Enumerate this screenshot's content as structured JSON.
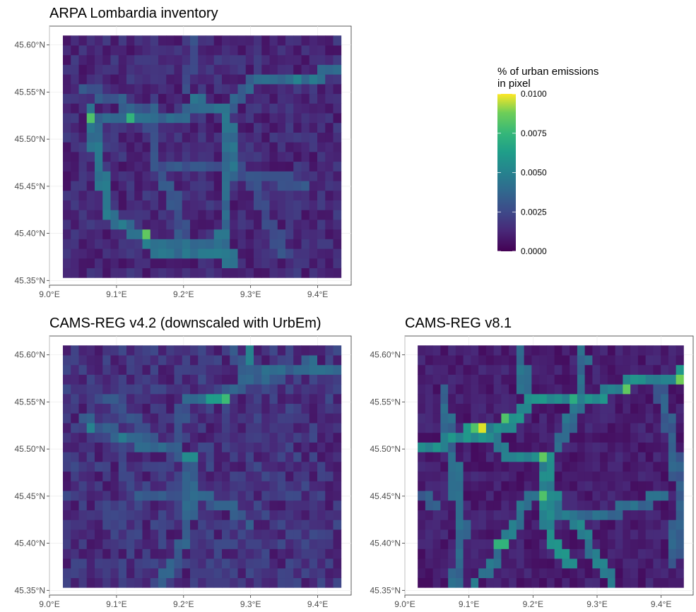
{
  "chart_data": [
    {
      "type": "heatmap",
      "title": "ARPA Lombardia inventory",
      "xlim": [
        9.0,
        9.45
      ],
      "ylim": [
        45.345,
        45.62
      ],
      "x_ticks": [
        "9.0°E",
        "9.1°E",
        "9.2°E",
        "9.3°E",
        "9.4°E"
      ],
      "y_ticks": [
        "45.35°N",
        "45.40°N",
        "45.45°N",
        "45.50°N",
        "45.55°N",
        "45.60°N"
      ],
      "grid_extent": {
        "lon": [
          9.02,
          9.435
        ],
        "lat": [
          45.353,
          45.61
        ]
      },
      "grid_size": [
        35,
        25
      ],
      "base_level": 0.0013,
      "hot_cells": [
        {
          "lon": 9.06,
          "lat": 45.518,
          "value": 0.0072
        },
        {
          "lon": 9.12,
          "lat": 45.518,
          "value": 0.0065
        },
        {
          "lon": 9.143,
          "lat": 45.398,
          "value": 0.0075
        },
        {
          "lon": 9.37,
          "lat": 45.566,
          "value": 0.0045
        },
        {
          "lon": 9.39,
          "lat": 45.566,
          "value": 0.0042
        }
      ],
      "roads": [
        {
          "value": 0.0038,
          "points": [
            [
              9.06,
              45.53
            ],
            [
              9.07,
              45.49
            ],
            [
              9.08,
              45.45
            ],
            [
              9.09,
              45.42
            ],
            [
              9.14,
              45.395
            ],
            [
              9.15,
              45.385
            ],
            [
              9.2,
              45.385
            ],
            [
              9.25,
              45.385
            ],
            [
              9.27,
              45.375
            ]
          ]
        },
        {
          "value": 0.0035,
          "points": [
            [
              9.06,
              45.52
            ],
            [
              9.19,
              45.52
            ],
            [
              9.22,
              45.54
            ],
            [
              9.26,
              45.53
            ],
            [
              9.27,
              45.5
            ],
            [
              9.265,
              45.45
            ],
            [
              9.26,
              45.4
            ],
            [
              9.27,
              45.37
            ]
          ]
        },
        {
          "value": 0.0033,
          "points": [
            [
              9.26,
              45.53
            ],
            [
              9.3,
              45.56
            ],
            [
              9.35,
              45.56
            ],
            [
              9.44,
              45.575
            ]
          ]
        },
        {
          "value": 0.0028,
          "points": [
            [
              9.05,
              45.555
            ],
            [
              9.1,
              45.54
            ],
            [
              9.15,
              45.53
            ]
          ]
        },
        {
          "value": 0.0026,
          "points": [
            [
              9.15,
              45.53
            ],
            [
              9.16,
              45.47
            ],
            [
              9.19,
              45.43
            ],
            [
              9.2,
              45.4
            ]
          ]
        },
        {
          "value": 0.0026,
          "points": [
            [
              9.18,
              45.47
            ],
            [
              9.26,
              45.47
            ],
            [
              9.33,
              45.46
            ],
            [
              9.38,
              45.45
            ]
          ]
        },
        {
          "value": 0.0024,
          "points": [
            [
              9.2,
              45.55
            ],
            [
              9.22,
              45.6
            ]
          ]
        },
        {
          "value": 0.0024,
          "points": [
            [
              9.3,
              45.46
            ],
            [
              9.33,
              45.41
            ],
            [
              9.35,
              45.38
            ]
          ]
        }
      ],
      "colorscale": "viridis",
      "value_range": [
        0.0,
        0.01
      ]
    },
    {
      "type": "heatmap",
      "title": "CAMS-REG v4.2 (downscaled with UrbEm)",
      "xlim": [
        9.0,
        9.45
      ],
      "ylim": [
        45.345,
        45.62
      ],
      "x_ticks": [
        "9.0°E",
        "9.1°E",
        "9.2°E",
        "9.3°E",
        "9.4°E"
      ],
      "y_ticks": [
        "45.35°N",
        "45.40°N",
        "45.45°N",
        "45.50°N",
        "45.55°N",
        "45.60°N"
      ],
      "grid_extent": {
        "lon": [
          9.02,
          9.435
        ],
        "lat": [
          45.353,
          45.61
        ]
      },
      "grid_size": [
        35,
        25
      ],
      "base_level": 0.0016,
      "hot_cells": [
        {
          "lon": 9.265,
          "lat": 45.556,
          "value": 0.0068
        },
        {
          "lon": 9.245,
          "lat": 45.556,
          "value": 0.0055
        },
        {
          "lon": 9.3,
          "lat": 45.6,
          "value": 0.0045
        },
        {
          "lon": 9.21,
          "lat": 45.49,
          "value": 0.0048
        },
        {
          "lon": 9.065,
          "lat": 45.527,
          "value": 0.0045
        },
        {
          "lon": 9.105,
          "lat": 45.508,
          "value": 0.0042
        }
      ],
      "roads": [
        {
          "value": 0.0033,
          "points": [
            [
              9.2,
              45.55
            ],
            [
              9.25,
              45.555
            ],
            [
              9.32,
              45.58
            ],
            [
              9.39,
              45.59
            ],
            [
              9.44,
              45.58
            ]
          ]
        },
        {
          "value": 0.0031,
          "points": [
            [
              9.05,
              45.53
            ],
            [
              9.12,
              45.51
            ],
            [
              9.18,
              45.5
            ],
            [
              9.21,
              45.49
            ],
            [
              9.21,
              45.44
            ],
            [
              9.2,
              45.4
            ],
            [
              9.17,
              45.36
            ]
          ]
        },
        {
          "value": 0.0029,
          "points": [
            [
              9.14,
              45.45
            ],
            [
              9.21,
              45.45
            ],
            [
              9.27,
              45.44
            ],
            [
              9.3,
              45.42
            ]
          ]
        },
        {
          "value": 0.0028,
          "points": [
            [
              9.28,
              45.6
            ],
            [
              9.3,
              45.58
            ],
            [
              9.35,
              45.57
            ]
          ]
        },
        {
          "value": 0.0027,
          "points": [
            [
              9.2,
              45.55
            ],
            [
              9.19,
              45.5
            ]
          ]
        },
        {
          "value": 0.0026,
          "points": [
            [
              9.09,
              45.55
            ],
            [
              9.13,
              45.53
            ],
            [
              9.16,
              45.5
            ]
          ]
        }
      ],
      "colorscale": "viridis",
      "value_range": [
        0.0,
        0.01
      ]
    },
    {
      "type": "heatmap",
      "title": "CAMS-REG v8.1",
      "xlim": [
        9.0,
        9.45
      ],
      "ylim": [
        45.345,
        45.62
      ],
      "x_ticks": [
        "9.0°E",
        "9.1°E",
        "9.2°E",
        "9.3°E",
        "9.4°E"
      ],
      "y_ticks": [
        "45.35°N",
        "45.40°N",
        "45.45°N",
        "45.50°N",
        "45.55°N",
        "45.60°N"
      ],
      "grid_extent": {
        "lon": [
          9.02,
          9.435
        ],
        "lat": [
          45.353,
          45.61
        ]
      },
      "grid_size": [
        35,
        25
      ],
      "base_level": 0.0009,
      "hot_cells": [
        {
          "lon": 9.12,
          "lat": 45.518,
          "value": 0.0095
        },
        {
          "lon": 9.105,
          "lat": 45.518,
          "value": 0.0072
        },
        {
          "lon": 9.16,
          "lat": 45.535,
          "value": 0.0072
        },
        {
          "lon": 9.22,
          "lat": 45.488,
          "value": 0.0075
        },
        {
          "lon": 9.22,
          "lat": 45.45,
          "value": 0.0072
        },
        {
          "lon": 9.345,
          "lat": 45.568,
          "value": 0.0075
        },
        {
          "lon": 9.43,
          "lat": 45.578,
          "value": 0.0078
        },
        {
          "lon": 9.265,
          "lat": 45.556,
          "value": 0.0062
        },
        {
          "lon": 9.15,
          "lat": 45.397,
          "value": 0.0065
        }
      ],
      "roads": [
        {
          "value": 0.0048,
          "points": [
            [
              9.02,
              45.505
            ],
            [
              9.06,
              45.505
            ],
            [
              9.1,
              45.518
            ],
            [
              9.14,
              45.518
            ],
            [
              9.17,
              45.53
            ],
            [
              9.19,
              45.55
            ],
            [
              9.3,
              45.555
            ],
            [
              9.35,
              45.57
            ],
            [
              9.44,
              45.58
            ]
          ]
        },
        {
          "value": 0.0046,
          "points": [
            [
              9.22,
              45.49
            ],
            [
              9.22,
              45.42
            ],
            [
              9.23,
              45.4
            ],
            [
              9.26,
              45.38
            ]
          ]
        },
        {
          "value": 0.0044,
          "points": [
            [
              9.14,
              45.51
            ],
            [
              9.17,
              45.49
            ],
            [
              9.2,
              45.49
            ],
            [
              9.22,
              45.49
            ]
          ]
        },
        {
          "value": 0.0042,
          "points": [
            [
              9.2,
              45.45
            ],
            [
              9.23,
              45.45
            ],
            [
              9.25,
              45.43
            ],
            [
              9.28,
              45.41
            ],
            [
              9.3,
              45.38
            ],
            [
              9.32,
              45.36
            ]
          ]
        },
        {
          "value": 0.004,
          "points": [
            [
              9.2,
              45.45
            ],
            [
              9.16,
              45.41
            ],
            [
              9.14,
              45.38
            ],
            [
              9.11,
              45.36
            ]
          ]
        },
        {
          "value": 0.0038,
          "points": [
            [
              9.18,
              45.6
            ],
            [
              9.19,
              45.55
            ]
          ]
        },
        {
          "value": 0.0036,
          "points": [
            [
              9.24,
              45.5
            ],
            [
              9.27,
              45.55
            ],
            [
              9.28,
              45.6
            ]
          ]
        },
        {
          "value": 0.0034,
          "points": [
            [
              9.06,
              45.56
            ],
            [
              9.07,
              45.52
            ],
            [
              9.08,
              45.46
            ],
            [
              9.09,
              45.42
            ],
            [
              9.08,
              45.36
            ]
          ]
        },
        {
          "value": 0.0034,
          "points": [
            [
              9.26,
              45.43
            ],
            [
              9.31,
              45.43
            ],
            [
              9.36,
              45.44
            ],
            [
              9.4,
              45.45
            ]
          ]
        },
        {
          "value": 0.003,
          "points": [
            [
              9.4,
              45.56
            ],
            [
              9.42,
              45.5
            ],
            [
              9.43,
              45.45
            ],
            [
              9.42,
              45.38
            ]
          ]
        },
        {
          "value": 0.0028,
          "points": [
            [
              9.02,
              45.45
            ],
            [
              9.05,
              45.44
            ]
          ]
        }
      ],
      "colorscale": "viridis",
      "value_range": [
        0.0,
        0.01
      ]
    }
  ],
  "legend": {
    "title_line1": "% of urban emissions",
    "title_line2": "in pixel",
    "ticks": [
      "0.0100",
      "0.0075",
      "0.0050",
      "0.0025",
      "0.0000"
    ],
    "tick_values": [
      0.01,
      0.0075,
      0.005,
      0.0025,
      0.0
    ],
    "placement": "right of top-left panel"
  }
}
